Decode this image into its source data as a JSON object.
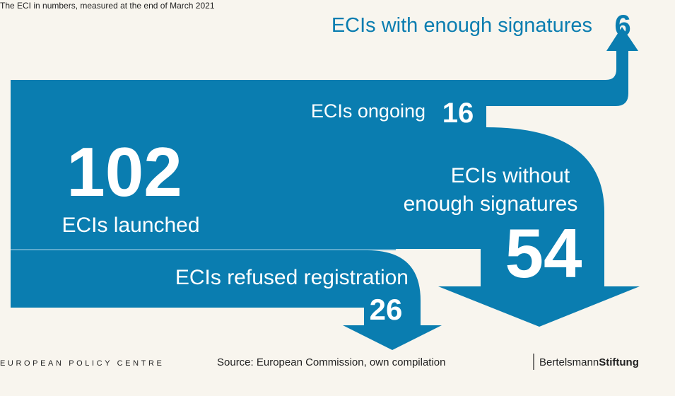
{
  "subtitle": "The ECI in numbers, measured at the end of March 2021",
  "nodes": [
    {
      "label": "ECIs with enough signatures",
      "number": "6"
    },
    {
      "label": "ECIs ongoing",
      "number": "16"
    },
    {
      "label": "ECIs launched",
      "number": "102"
    },
    {
      "label": [
        "ECIs without",
        "enough signatures"
      ],
      "number": "54"
    },
    {
      "label": "ECIs refused registration",
      "number": "26"
    }
  ],
  "footer": {
    "left": "EUROPEAN POLICY CENTRE",
    "source": "Source: European Commission, own compilation",
    "brand": "Bertelsmann",
    "brand_bold": "Stiftung"
  }
}
